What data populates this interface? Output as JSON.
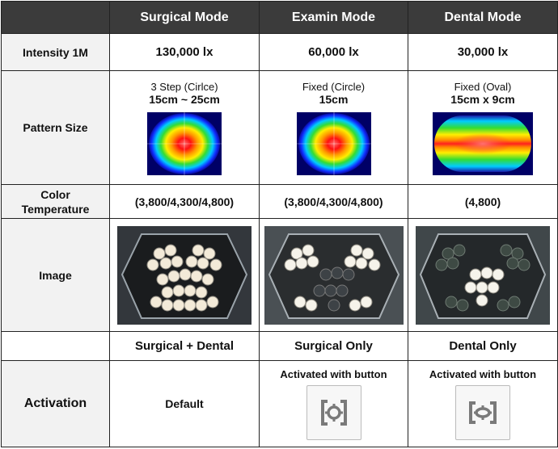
{
  "header": {
    "col1": "Surgical Mode",
    "col2": "Examin Mode",
    "col3": "Dental Mode"
  },
  "rows": {
    "intensity": {
      "label": "Intensity 1M",
      "surgical": "130,000 lx",
      "examin": "60,000 lx",
      "dental": "30,000 lx"
    },
    "pattern": {
      "label": "Pattern Size",
      "surgical_type": "3 Step (Cirlce)",
      "surgical_size": "15cm ~ 25cm",
      "examin_type": "Fixed (Circle)",
      "examin_size": "15cm",
      "dental_type": "Fixed (Oval)",
      "dental_size": "15cm x 9cm"
    },
    "color_temp": {
      "label_line1": "Color",
      "label_line2": "Temperature",
      "surgical": "(3,800/4,300/4,800)",
      "examin": "(3,800/4,300/4,800)",
      "dental": "(4,800)"
    },
    "image": {
      "label": "Image",
      "surgical_icon": "surgical-light-photo",
      "examin_icon": "surgical-light-photo",
      "dental_icon": "surgical-light-photo"
    },
    "mode_use": {
      "surgical": "Surgical + Dental",
      "examin": "Surgical Only",
      "dental": "Dental Only"
    },
    "activation": {
      "label": "Activation",
      "surgical": "Default",
      "examin": "Activated with button",
      "dental": "Activated with button",
      "examin_icon": "focus-circle-button-icon",
      "dental_icon": "focus-oval-button-icon"
    }
  },
  "colors": {
    "header_bg": "#3b3b3b",
    "rowhead_bg": "#f2f2f2",
    "icon_gray": "#7a7a7a"
  }
}
